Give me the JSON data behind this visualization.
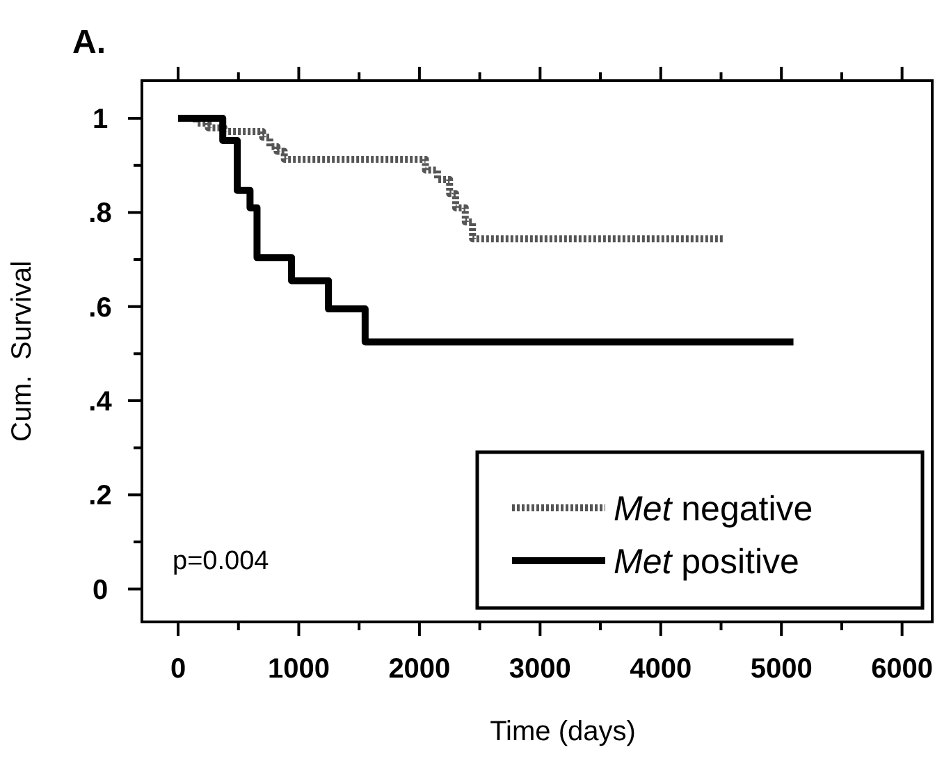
{
  "chart_data": {
    "type": "step",
    "title": "A.",
    "xlabel": "Time (days)",
    "ylabel": "Cum.  Survival",
    "xlim": [
      -300,
      6250
    ],
    "ylim": [
      -0.07,
      1.08
    ],
    "xticks": [
      0,
      {
        "value": 500,
        "label": null
      },
      1000,
      {
        "value": 1500,
        "label": null
      },
      2000,
      {
        "value": 2500,
        "label": null
      },
      3000,
      {
        "value": 3500,
        "label": null
      },
      4000,
      {
        "value": 4500,
        "label": null
      },
      5000,
      {
        "value": 5500,
        "label": null
      },
      6000
    ],
    "yticks": [
      0,
      {
        "value": 0.1,
        "label": null
      },
      {
        "value": 0.2,
        "label": ".2"
      },
      {
        "value": 0.3,
        "label": null
      },
      {
        "value": 0.4,
        "label": ".4"
      },
      {
        "value": 0.5,
        "label": null
      },
      {
        "value": 0.6,
        "label": ".6"
      },
      {
        "value": 0.7,
        "label": null
      },
      {
        "value": 0.8,
        "label": ".8"
      },
      {
        "value": 0.9,
        "label": null
      },
      1
    ],
    "grid": false,
    "legend": "bottom right",
    "series": [
      {
        "name": "Met negative",
        "color": "#555555",
        "line_style": "dotted",
        "x": [
          0,
          150,
          250,
          380,
          700,
          760,
          820,
          880,
          2050,
          2150,
          2250,
          2300,
          2380,
          2440,
          4530
        ],
        "values": [
          1.0,
          0.99,
          0.98,
          0.972,
          0.96,
          0.94,
          0.93,
          0.913,
          0.89,
          0.87,
          0.84,
          0.81,
          0.78,
          0.744,
          0.744
        ]
      },
      {
        "name": "Met positive",
        "color": "#000000",
        "line_style": "solid",
        "x": [
          0,
          370,
          490,
          596,
          654,
          940,
          1246,
          1550,
          5100
        ],
        "values": [
          1.0,
          0.953,
          0.847,
          0.81,
          0.704,
          0.655,
          0.595,
          0.525,
          0.525
        ]
      }
    ],
    "annotations": [
      "p=0.004"
    ]
  }
}
